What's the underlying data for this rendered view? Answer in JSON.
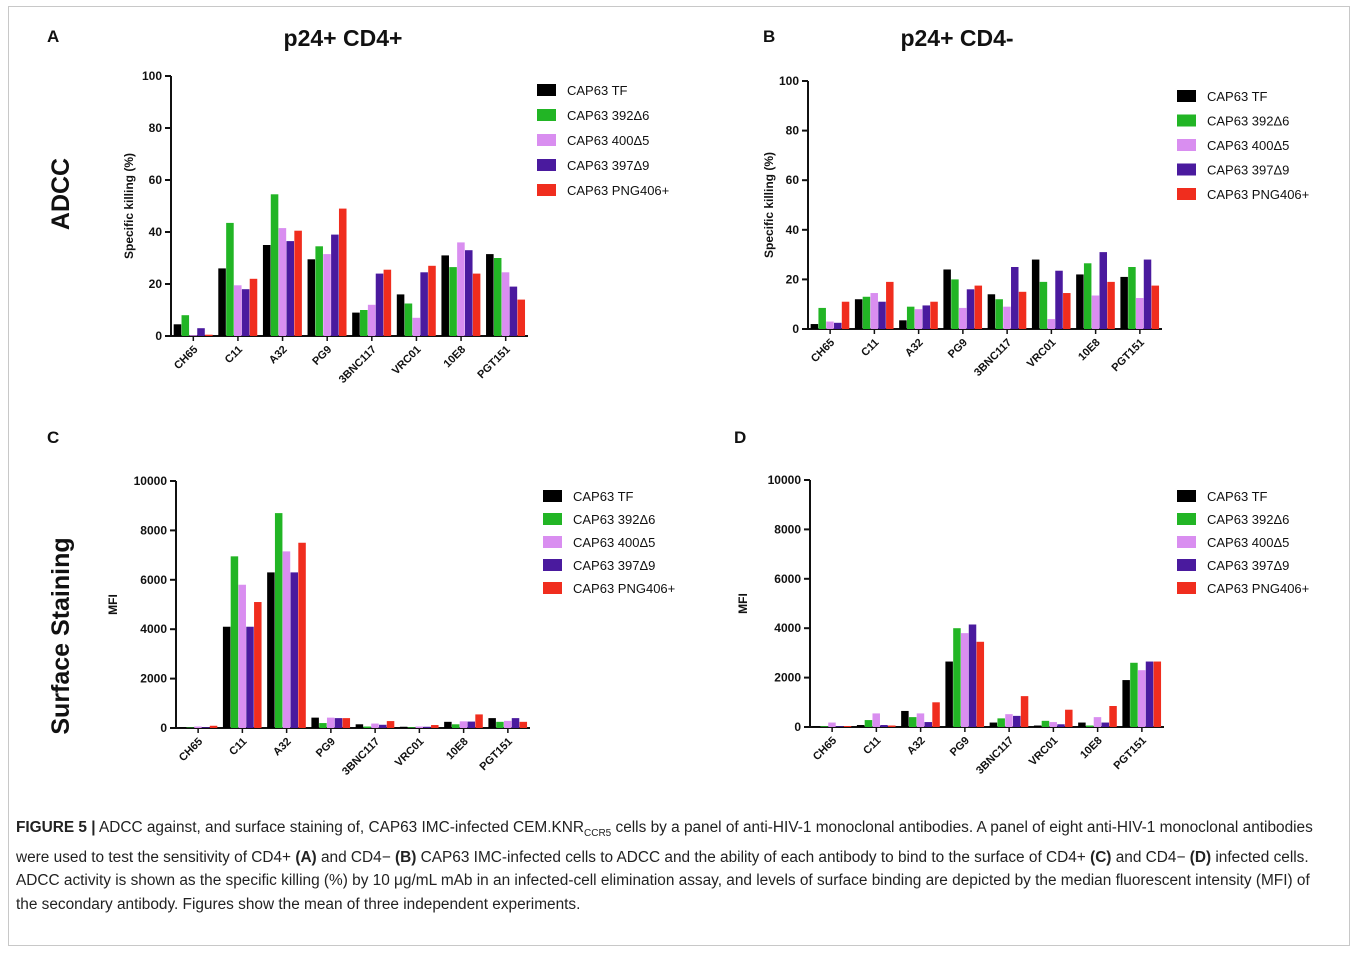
{
  "figure": {
    "row_labels": [
      "ADCC",
      "Surface Staining"
    ],
    "series_names": [
      "CAP63 TF",
      "CAP63 392Δ6",
      "CAP63 400Δ5",
      "CAP63 397Δ9",
      "CAP63 PNG406+"
    ],
    "series_colors": [
      "#000000",
      "#22b525",
      "#d98ef0",
      "#4a1a9e",
      "#f02d1e"
    ]
  },
  "chart_data": [
    {
      "type": "bar",
      "panel": "A",
      "title": "p24+ CD4+",
      "ylabel": "Specific killing (%)",
      "xlabel": "",
      "ylim": [
        0,
        100
      ],
      "yticks": [
        0,
        20,
        40,
        60,
        80,
        100
      ],
      "categories": [
        "CH65",
        "C11",
        "A32",
        "PG9",
        "3BNC117",
        "VRC01",
        "10E8",
        "PGT151"
      ],
      "legend": "right",
      "series": [
        {
          "name": "CAP63 TF",
          "values": [
            4.5,
            26,
            35,
            29.5,
            9,
            16,
            31,
            31.5
          ]
        },
        {
          "name": "CAP63 392Δ6",
          "values": [
            8,
            43.5,
            54.5,
            34.5,
            10,
            12.5,
            26.5,
            30
          ]
        },
        {
          "name": "CAP63 400Δ5",
          "values": [
            0.3,
            19.5,
            41.5,
            31.5,
            12,
            7,
            36,
            24.5
          ]
        },
        {
          "name": "CAP63 397Δ9",
          "values": [
            3,
            18,
            36.5,
            39,
            24,
            24.5,
            33,
            19
          ]
        },
        {
          "name": "CAP63 PNG406+",
          "values": [
            0.5,
            22,
            40.5,
            49,
            25.5,
            27,
            24,
            14
          ]
        }
      ]
    },
    {
      "type": "bar",
      "panel": "B",
      "title": "p24+ CD4-",
      "ylabel": "Specific killing (%)",
      "xlabel": "",
      "ylim": [
        0,
        100
      ],
      "yticks": [
        0,
        20,
        40,
        60,
        80,
        100
      ],
      "categories": [
        "CH65",
        "C11",
        "A32",
        "PG9",
        "3BNC117",
        "VRC01",
        "10E8",
        "PGT151"
      ],
      "legend": "right",
      "series": [
        {
          "name": "CAP63 TF",
          "values": [
            2,
            12,
            3.5,
            24,
            14,
            28,
            22,
            21
          ]
        },
        {
          "name": "CAP63 392Δ6",
          "values": [
            8.5,
            13,
            9,
            20,
            12,
            19,
            26.5,
            25
          ]
        },
        {
          "name": "CAP63 400Δ5",
          "values": [
            3,
            14.5,
            8,
            8.5,
            9,
            4,
            13.5,
            12.5
          ]
        },
        {
          "name": "CAP63 397Δ9",
          "values": [
            2.5,
            11,
            9.5,
            16,
            25,
            23.5,
            31,
            28
          ]
        },
        {
          "name": "CAP63 PNG406+",
          "values": [
            11,
            19,
            11,
            17.5,
            15,
            14.5,
            19,
            17.5
          ]
        }
      ]
    },
    {
      "type": "bar",
      "panel": "C",
      "title": "",
      "ylabel": "MFI",
      "xlabel": "",
      "ylim": [
        0,
        10000
      ],
      "yticks": [
        0,
        2000,
        4000,
        6000,
        8000,
        10000
      ],
      "categories": [
        "CH65",
        "C11",
        "A32",
        "PG9",
        "3BNC117",
        "VRC01",
        "10E8",
        "PGT151"
      ],
      "legend": "right",
      "series": [
        {
          "name": "CAP63 TF",
          "values": [
            20,
            4100,
            6300,
            420,
            150,
            50,
            250,
            400
          ]
        },
        {
          "name": "CAP63 392Δ6",
          "values": [
            20,
            6950,
            8700,
            200,
            60,
            30,
            150,
            250
          ]
        },
        {
          "name": "CAP63 400Δ5",
          "values": [
            60,
            5800,
            7150,
            420,
            180,
            60,
            270,
            290
          ]
        },
        {
          "name": "CAP63 397Δ9",
          "values": [
            30,
            4100,
            6300,
            400,
            130,
            50,
            260,
            400
          ]
        },
        {
          "name": "CAP63 PNG406+",
          "values": [
            90,
            5100,
            7500,
            400,
            280,
            120,
            550,
            250
          ]
        }
      ]
    },
    {
      "type": "bar",
      "panel": "D",
      "title": "",
      "ylabel": "MFI",
      "xlabel": "",
      "ylim": [
        0,
        10000
      ],
      "yticks": [
        0,
        2000,
        4000,
        6000,
        8000,
        10000
      ],
      "categories": [
        "CH65",
        "C11",
        "A32",
        "PG9",
        "3BNC117",
        "VRC01",
        "10E8",
        "PGT151"
      ],
      "legend": "right",
      "series": [
        {
          "name": "CAP63 TF",
          "values": [
            20,
            80,
            650,
            2650,
            180,
            60,
            180,
            1900
          ]
        },
        {
          "name": "CAP63 392Δ6",
          "values": [
            30,
            280,
            400,
            4000,
            350,
            250,
            60,
            2600
          ]
        },
        {
          "name": "CAP63 400Δ5",
          "values": [
            180,
            550,
            550,
            3800,
            520,
            200,
            400,
            2300
          ]
        },
        {
          "name": "CAP63 397Δ9",
          "values": [
            30,
            80,
            200,
            4150,
            450,
            110,
            180,
            2650
          ]
        },
        {
          "name": "CAP63 PNG406+",
          "values": [
            40,
            60,
            1000,
            3450,
            1250,
            700,
            850,
            2650
          ]
        }
      ]
    }
  ],
  "caption": {
    "fig_label": "FIGURE 5 |",
    "t1": " ADCC against, and surface staining of, CAP63 IMC-infected CEM.KNR",
    "sub": "CCR5",
    "t2": " cells by a panel of anti-HIV-1 monoclonal antibodies. A panel of eight anti-HIV-1 monoclonal antibodies were used to test the sensitivity of CD4+ ",
    "bA": "(A)",
    "t3": " and CD4− ",
    "bB": "(B)",
    "t4": " CAP63 IMC-infected cells to ADCC and the ability of each antibody to bind to the surface of CD4+ ",
    "bC": "(C)",
    "t5": " and CD4− ",
    "bD": "(D)",
    "t6": " infected cells. ADCC activity is shown as the specific killing (%) by 10 μg/mL mAb in an infected-cell elimination assay, and levels of surface binding are depicted by the median fluorescent intensity (MFI) of the secondary antibody. Figures show the mean of three independent experiments."
  }
}
